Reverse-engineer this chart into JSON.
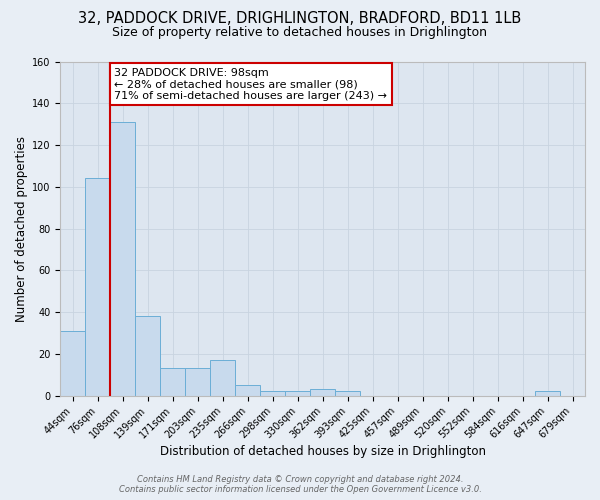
{
  "title1": "32, PADDOCK DRIVE, DRIGHLINGTON, BRADFORD, BD11 1LB",
  "title2": "Size of property relative to detached houses in Drighlington",
  "xlabel": "Distribution of detached houses by size in Drighlington",
  "ylabel": "Number of detached properties",
  "bar_labels": [
    "44sqm",
    "76sqm",
    "108sqm",
    "139sqm",
    "171sqm",
    "203sqm",
    "235sqm",
    "266sqm",
    "298sqm",
    "330sqm",
    "362sqm",
    "393sqm",
    "425sqm",
    "457sqm",
    "489sqm",
    "520sqm",
    "552sqm",
    "584sqm",
    "616sqm",
    "647sqm",
    "679sqm"
  ],
  "bar_values": [
    31,
    104,
    131,
    38,
    13,
    13,
    17,
    5,
    2,
    2,
    3,
    2,
    0,
    0,
    0,
    0,
    0,
    0,
    0,
    2,
    0
  ],
  "bar_color": "#c8daed",
  "bar_edge_color": "#6baed6",
  "vline_color": "#cc0000",
  "vline_x_idx": 2,
  "annotation_text": "32 PADDOCK DRIVE: 98sqm\n← 28% of detached houses are smaller (98)\n71% of semi-detached houses are larger (243) →",
  "annotation_box_edge": "#cc0000",
  "ylim": [
    0,
    160
  ],
  "yticks": [
    0,
    20,
    40,
    60,
    80,
    100,
    120,
    140,
    160
  ],
  "grid_color": "#c8d4e0",
  "plot_bg_color": "#dde6f0",
  "fig_bg_color": "#e8eef5",
  "footer1": "Contains HM Land Registry data © Crown copyright and database right 2024.",
  "footer2": "Contains public sector information licensed under the Open Government Licence v3.0.",
  "title1_fontsize": 10.5,
  "title2_fontsize": 9,
  "xlabel_fontsize": 8.5,
  "ylabel_fontsize": 8.5,
  "tick_fontsize": 7,
  "annotation_fontsize": 8,
  "footer_fontsize": 6
}
